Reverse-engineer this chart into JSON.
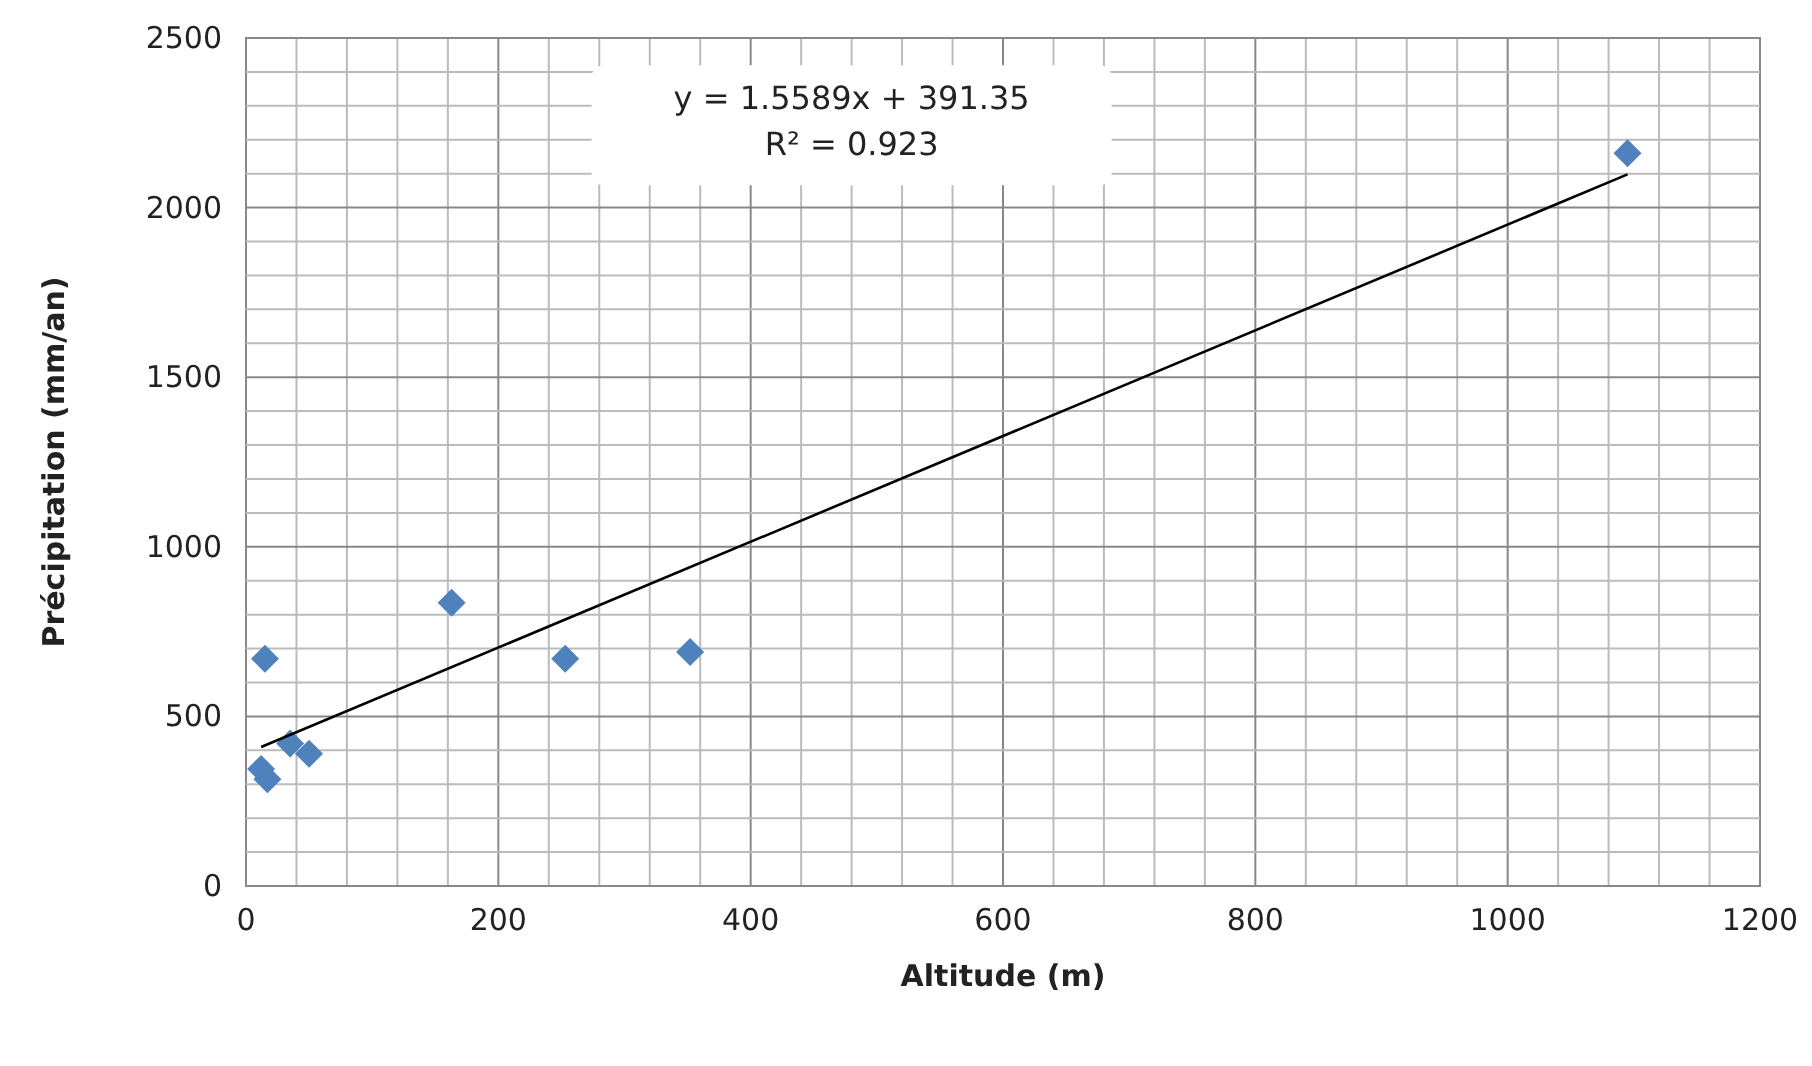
{
  "chart_data": {
    "type": "scatter",
    "xlabel": "Altitude (m)",
    "ylabel": "Précipitation (mm/an)",
    "annotations": [
      "y = 1.5589x + 391.35",
      "R² = 0.923"
    ],
    "xlim": [
      0,
      1200
    ],
    "ylim": [
      0,
      2500
    ],
    "xticks": [
      0,
      {
        "value": 40,
        "label": null
      },
      {
        "value": 80,
        "label": null
      },
      {
        "value": 120,
        "label": null
      },
      {
        "value": 160,
        "label": null
      },
      200,
      {
        "value": 240,
        "label": null
      },
      {
        "value": 280,
        "label": null
      },
      {
        "value": 320,
        "label": null
      },
      {
        "value": 360,
        "label": null
      },
      400,
      {
        "value": 440,
        "label": null
      },
      {
        "value": 480,
        "label": null
      },
      {
        "value": 520,
        "label": null
      },
      {
        "value": 560,
        "label": null
      },
      600,
      {
        "value": 640,
        "label": null
      },
      {
        "value": 680,
        "label": null
      },
      {
        "value": 720,
        "label": null
      },
      {
        "value": 760,
        "label": null
      },
      800,
      {
        "value": 840,
        "label": null
      },
      {
        "value": 880,
        "label": null
      },
      {
        "value": 920,
        "label": null
      },
      {
        "value": 960,
        "label": null
      },
      1000,
      {
        "value": 1040,
        "label": null
      },
      {
        "value": 1080,
        "label": null
      },
      {
        "value": 1120,
        "label": null
      },
      {
        "value": 1160,
        "label": null
      },
      1200
    ],
    "yticks": [
      0,
      {
        "value": 100,
        "label": null
      },
      {
        "value": 200,
        "label": null
      },
      {
        "value": 300,
        "label": null
      },
      {
        "value": 400,
        "label": null
      },
      500,
      {
        "value": 600,
        "label": null
      },
      {
        "value": 700,
        "label": null
      },
      {
        "value": 800,
        "label": null
      },
      {
        "value": 900,
        "label": null
      },
      1000,
      {
        "value": 1100,
        "label": null
      },
      {
        "value": 1200,
        "label": null
      },
      {
        "value": 1300,
        "label": null
      },
      {
        "value": 1400,
        "label": null
      },
      1500,
      {
        "value": 1600,
        "label": null
      },
      {
        "value": 1700,
        "label": null
      },
      {
        "value": 1800,
        "label": null
      },
      {
        "value": 1900,
        "label": null
      },
      2000,
      {
        "value": 2100,
        "label": null
      },
      {
        "value": 2200,
        "label": null
      },
      {
        "value": 2300,
        "label": null
      },
      {
        "value": 2400,
        "label": null
      },
      2500
    ],
    "grid": true,
    "marker": "diamond",
    "series": [
      {
        "color": "#4f81bd",
        "x": [
          15,
          12,
          17,
          35,
          50,
          163,
          253,
          352,
          1095
        ],
        "values": [
          670,
          345,
          315,
          420,
          390,
          835,
          670,
          690,
          2160
        ]
      },
      {
        "type": "line",
        "color": "#000000",
        "marker": "none",
        "x": [
          12,
          1095
        ],
        "values": [
          410,
          2098
        ]
      }
    ]
  }
}
